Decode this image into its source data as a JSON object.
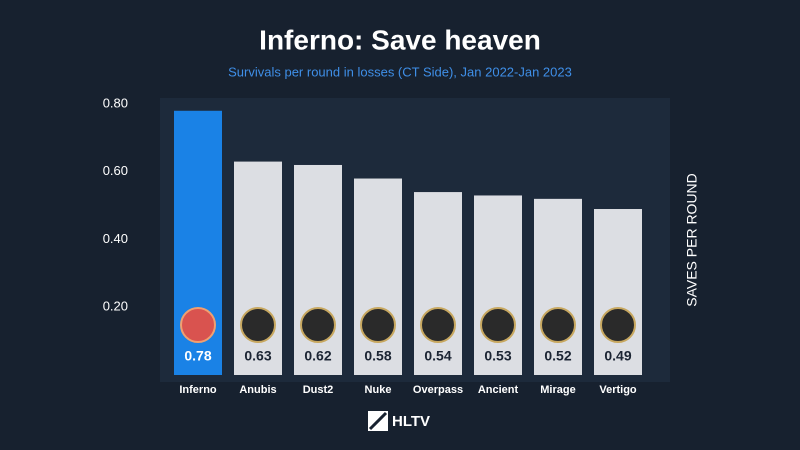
{
  "chart_data": {
    "type": "bar",
    "title": "Inferno: Save heaven",
    "subtitle": "Survivals per round in losses (CT Side), Jan 2022-Jan 2023",
    "y_label": "SAVES PER ROUND",
    "categories": [
      "Inferno",
      "Anubis",
      "Dust2",
      "Nuke",
      "Overpass",
      "Ancient",
      "Mirage",
      "Vertigo"
    ],
    "values": [
      0.78,
      0.63,
      0.62,
      0.58,
      0.54,
      0.53,
      0.52,
      0.49
    ],
    "colors": [
      "#1a82e6",
      "#dcdee3",
      "#dcdee3",
      "#dcdee3",
      "#dcdee3",
      "#dcdee3",
      "#dcdee3",
      "#dcdee3"
    ],
    "ylim": [
      0,
      0.8
    ],
    "yticks": [
      {
        "value": 0.2,
        "label": "0.20"
      },
      {
        "value": 0.4,
        "label": "0.40"
      },
      {
        "value": 0.6,
        "label": "0.60"
      },
      {
        "value": 0.8,
        "label": "0.80"
      }
    ],
    "grid": false,
    "source": "HLTV"
  }
}
